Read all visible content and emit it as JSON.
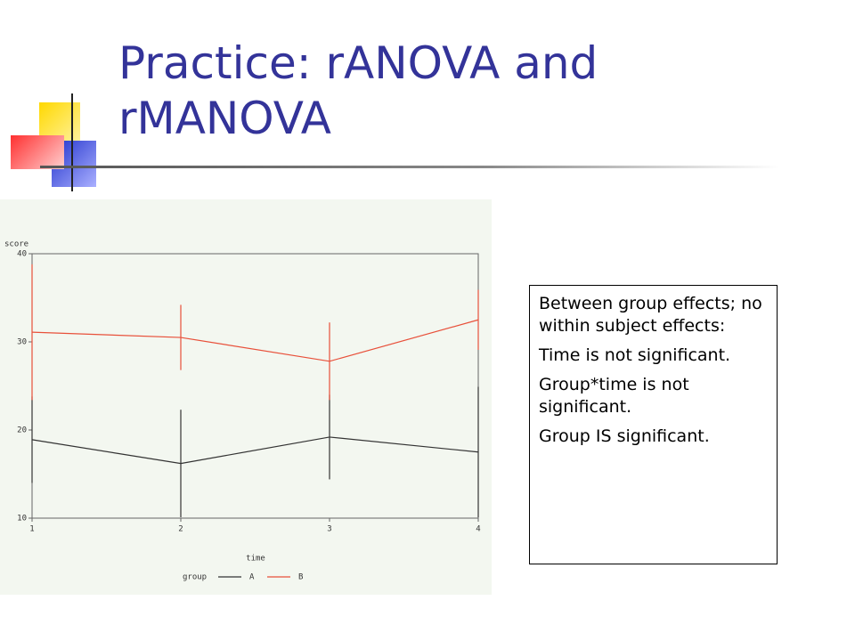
{
  "slide": {
    "title": "Practice: rANOVA and rMANOVA",
    "notes": [
      "Between group effects; no within subject effects:",
      "Time is not significant.",
      "Group*time is not significant.",
      "Group IS significant."
    ]
  },
  "chart_data": {
    "type": "line",
    "x_label": "time",
    "y_label": "score",
    "legend_title": "group",
    "x": [
      1,
      2,
      3,
      4
    ],
    "xlim": [
      1,
      4
    ],
    "xticks": [
      1,
      2,
      3,
      4
    ],
    "ylim": [
      10,
      40
    ],
    "yticks": [
      10,
      20,
      30,
      40
    ],
    "series": [
      {
        "name": "A",
        "color": "#333333",
        "values": [
          18.9,
          16.2,
          19.2,
          17.5
        ],
        "errors": [
          4.9,
          6.1,
          4.8,
          7.4
        ]
      },
      {
        "name": "B",
        "color": "#e8503a",
        "values": [
          31.1,
          30.5,
          27.8,
          32.5
        ],
        "errors": [
          7.7,
          3.7,
          4.4,
          3.4
        ]
      }
    ]
  }
}
